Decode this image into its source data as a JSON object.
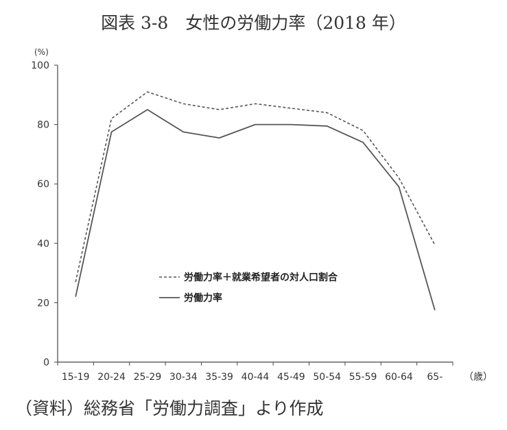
{
  "chart_data": {
    "type": "line",
    "title": "図表 3-8　女性の労働力率（2018 年）",
    "ylabel_unit": "(%)",
    "xlabel_unit": "（歳）",
    "ylim": [
      0,
      100
    ],
    "yticks": [
      0,
      20,
      40,
      60,
      80,
      100
    ],
    "categories": [
      "15-19",
      "20-24",
      "25-29",
      "30-34",
      "35-39",
      "40-44",
      "45-49",
      "50-54",
      "55-59",
      "60-64",
      "65-"
    ],
    "series": [
      {
        "name": "労働力率＋就業希望者の対人口割合",
        "style": "dashed",
        "values": [
          27,
          82,
          91,
          87,
          85,
          87,
          85.5,
          84,
          78,
          62,
          39.5
        ]
      },
      {
        "name": "労働力率",
        "style": "solid",
        "values": [
          22,
          77.5,
          85,
          77.5,
          75.5,
          80,
          80,
          79.5,
          74,
          59,
          17.5
        ]
      }
    ],
    "legend_position": "inside-bottom-center",
    "grid": false,
    "line_color": "#555555"
  },
  "source_note": "（資料）総務省「労働力調査」より作成"
}
